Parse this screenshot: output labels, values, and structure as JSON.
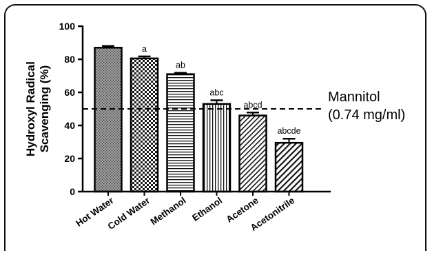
{
  "chart_data": {
    "type": "bar",
    "categories": [
      "Hot Water",
      "Cold Water",
      "Methanol",
      "Ethanol",
      "Acetone",
      "Acetonitrile"
    ],
    "values": [
      87,
      80.5,
      71,
      53,
      46,
      29.5
    ],
    "errors": [
      1.0,
      1.2,
      0.8,
      2.2,
      1.8,
      2.5
    ],
    "significance_labels": [
      "",
      "a",
      "ab",
      "abc",
      "abcd",
      "abcde"
    ],
    "fill_patterns": [
      "dense-stipple",
      "checkerboard",
      "horizontal-lines",
      "vertical-lines",
      "diagonal-hatch",
      "diagonal-hatch-wide"
    ],
    "ylabel_line1": "Hydroxyl Radical",
    "ylabel_line2": "Scavenging (%)",
    "xlabel": "",
    "ylim": [
      0,
      100
    ],
    "yticks": [
      0,
      20,
      40,
      60,
      80,
      100
    ],
    "reference_line": {
      "value": 50,
      "label_line1": "Mannitol",
      "label_line2": "(0.74 mg/ml)",
      "style": "dashed"
    },
    "grid": false,
    "legend": "none"
  }
}
